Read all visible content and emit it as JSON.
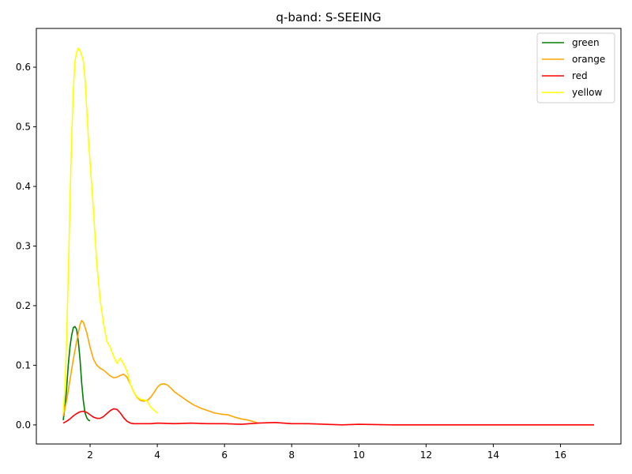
{
  "chart_data": {
    "type": "line",
    "title": "q-band: S-SEEING",
    "xlabel": "",
    "ylabel": "",
    "xlim": [
      0.4,
      17.8
    ],
    "ylim": [
      -0.032,
      0.665
    ],
    "x_ticks": [
      2,
      4,
      6,
      8,
      10,
      12,
      14,
      16
    ],
    "y_ticks": [
      0.0,
      0.1,
      0.2,
      0.3,
      0.4,
      0.5,
      0.6
    ],
    "grid": false,
    "legend": "top-right",
    "series": [
      {
        "name": "green",
        "color": "#008000",
        "x": [
          1.2,
          1.25,
          1.3,
          1.35,
          1.4,
          1.45,
          1.5,
          1.55,
          1.6,
          1.65,
          1.7,
          1.75,
          1.8,
          1.85,
          1.9,
          1.95,
          2.0
        ],
        "y": [
          0.008,
          0.03,
          0.06,
          0.1,
          0.13,
          0.15,
          0.163,
          0.165,
          0.16,
          0.14,
          0.11,
          0.07,
          0.04,
          0.02,
          0.012,
          0.008,
          0.007
        ]
      },
      {
        "name": "orange",
        "color": "#ffa500",
        "x": [
          1.2,
          1.3,
          1.4,
          1.5,
          1.6,
          1.7,
          1.75,
          1.8,
          1.9,
          2.0,
          2.1,
          2.2,
          2.3,
          2.4,
          2.5,
          2.6,
          2.7,
          2.8,
          2.9,
          3.0,
          3.1,
          3.2,
          3.3,
          3.4,
          3.5,
          3.6,
          3.7,
          3.8,
          3.9,
          4.0,
          4.1,
          4.2,
          4.3,
          4.4,
          4.5,
          4.7,
          4.9,
          5.1,
          5.3,
          5.5,
          5.7,
          5.9,
          6.1,
          6.3,
          6.5,
          6.7,
          6.9,
          7.0
        ],
        "y": [
          0.015,
          0.04,
          0.075,
          0.11,
          0.14,
          0.168,
          0.175,
          0.172,
          0.155,
          0.13,
          0.11,
          0.1,
          0.095,
          0.092,
          0.087,
          0.082,
          0.079,
          0.08,
          0.083,
          0.085,
          0.08,
          0.068,
          0.055,
          0.046,
          0.041,
          0.04,
          0.041,
          0.046,
          0.054,
          0.063,
          0.068,
          0.069,
          0.067,
          0.062,
          0.056,
          0.048,
          0.04,
          0.033,
          0.028,
          0.024,
          0.02,
          0.018,
          0.017,
          0.013,
          0.01,
          0.008,
          0.005,
          0.003
        ]
      },
      {
        "name": "red",
        "color": "#ff0000",
        "x": [
          1.2,
          1.3,
          1.4,
          1.5,
          1.6,
          1.7,
          1.8,
          1.9,
          2.0,
          2.1,
          2.2,
          2.3,
          2.4,
          2.5,
          2.6,
          2.7,
          2.8,
          2.9,
          3.0,
          3.1,
          3.2,
          3.3,
          3.4,
          3.5,
          3.6,
          3.8,
          4.0,
          4.5,
          5.0,
          5.5,
          6.0,
          6.5,
          7.0,
          7.5,
          8.0,
          8.5,
          9.0,
          9.5,
          10.0,
          11.0,
          12.0,
          13.0,
          14.0,
          15.0,
          16.0,
          17.0
        ],
        "y": [
          0.003,
          0.006,
          0.01,
          0.015,
          0.019,
          0.022,
          0.023,
          0.021,
          0.017,
          0.013,
          0.011,
          0.011,
          0.014,
          0.019,
          0.024,
          0.027,
          0.026,
          0.02,
          0.012,
          0.006,
          0.003,
          0.002,
          0.002,
          0.002,
          0.002,
          0.002,
          0.003,
          0.002,
          0.003,
          0.002,
          0.002,
          0.001,
          0.003,
          0.004,
          0.002,
          0.002,
          0.001,
          0.0,
          0.001,
          0.0,
          0.0,
          0.0,
          0.0,
          0.0,
          0.0,
          0.0
        ]
      },
      {
        "name": "yellow",
        "color": "#ffff00",
        "x": [
          1.2,
          1.25,
          1.3,
          1.35,
          1.4,
          1.45,
          1.5,
          1.55,
          1.6,
          1.65,
          1.7,
          1.75,
          1.8,
          1.85,
          1.9,
          1.95,
          2.0,
          2.1,
          2.2,
          2.3,
          2.4,
          2.5,
          2.6,
          2.7,
          2.8,
          2.9,
          3.0,
          3.1,
          3.2,
          3.3,
          3.4,
          3.5,
          3.6,
          3.7,
          3.8,
          3.9,
          4.0
        ],
        "y": [
          0.02,
          0.06,
          0.14,
          0.25,
          0.37,
          0.48,
          0.56,
          0.61,
          0.625,
          0.632,
          0.628,
          0.62,
          0.61,
          0.58,
          0.53,
          0.48,
          0.44,
          0.36,
          0.27,
          0.21,
          0.17,
          0.14,
          0.13,
          0.115,
          0.103,
          0.112,
          0.102,
          0.09,
          0.068,
          0.055,
          0.047,
          0.043,
          0.042,
          0.04,
          0.03,
          0.025,
          0.02
        ]
      }
    ]
  }
}
